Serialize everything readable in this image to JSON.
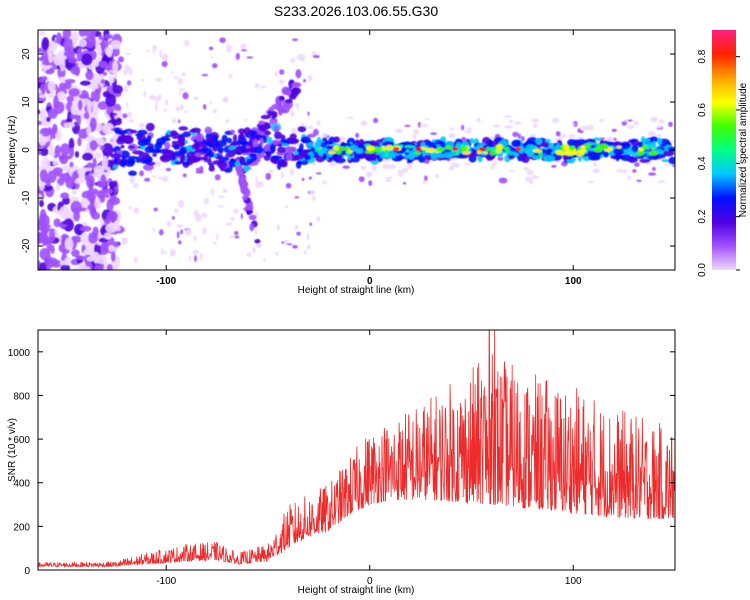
{
  "title": "S233.2026.103.06.55.G30",
  "chart_data": [
    {
      "type": "heatmap",
      "xlabel": "Height of straight line (km)",
      "ylabel": "Frequency (Hz)",
      "xlim": [
        -163,
        150
      ],
      "ylim": [
        -25,
        25
      ],
      "xticks": [
        -100,
        0,
        100
      ],
      "yticks": [
        20,
        10,
        0,
        -10,
        -20
      ],
      "ytick_labels": [
        "20",
        "10",
        "0",
        "-10",
        "-20"
      ],
      "colorbar": {
        "label": "Normalized spectral amplitude",
        "range": [
          0,
          0.9
        ],
        "ticks": [
          "0.0",
          "0.2",
          "0.4",
          "0.6",
          "0.8"
        ],
        "colors": [
          "#f0d8ff",
          "#a050ff",
          "#5000e0",
          "#0010ff",
          "#00c8ff",
          "#00ff80",
          "#40ff00",
          "#ffff00",
          "#ffa000",
          "#ff2000",
          "#ff2080"
        ]
      },
      "description_points": {
        "band_center_hz": 0,
        "band_start_km": -125,
        "noise_region_km": [
          -163,
          -125
        ],
        "wing_upper": {
          "start_km": -60,
          "end_km": -35,
          "start_hz": 0,
          "end_hz": 14
        },
        "wing_lower": {
          "start_km": -65,
          "end_km": -55,
          "start_hz": -2,
          "end_hz": -20
        },
        "red_peaks_km": [
          13,
          24,
          42,
          55,
          73
        ]
      }
    },
    {
      "type": "line",
      "xlabel": "Height of straight line (km)",
      "ylabel": "SNR (10 * v/v)",
      "xlim": [
        -163,
        150
      ],
      "ylim": [
        0,
        1100
      ],
      "xticks": [
        -100,
        0,
        100
      ],
      "yticks": [
        0,
        200,
        400,
        600,
        800,
        1000
      ],
      "line_color": "#ee2b2b",
      "envelope": {
        "x": [
          -163,
          -125,
          -110,
          -90,
          -75,
          -65,
          -50,
          -40,
          -30,
          -20,
          -10,
          0,
          10,
          30,
          60,
          80,
          100,
          120,
          150
        ],
        "baseline": [
          15,
          15,
          25,
          40,
          45,
          25,
          40,
          100,
          150,
          180,
          250,
          300,
          320,
          320,
          300,
          280,
          260,
          240,
          230
        ],
        "peak": [
          35,
          40,
          80,
          120,
          130,
          80,
          120,
          300,
          350,
          400,
          520,
          650,
          700,
          800,
          1000,
          900,
          850,
          750,
          650
        ]
      }
    }
  ]
}
